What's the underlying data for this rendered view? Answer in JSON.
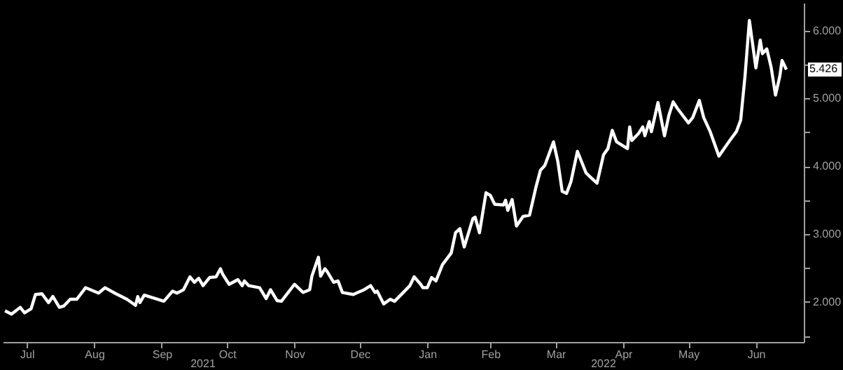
{
  "chart_data": {
    "type": "line",
    "x": [
      "2021-07-06",
      "2021-07-09",
      "2021-07-13",
      "2021-07-15",
      "2021-07-18",
      "2021-07-20",
      "2021-07-23",
      "2021-07-26",
      "2021-07-28",
      "2021-07-31",
      "2021-08-02",
      "2021-08-05",
      "2021-08-08",
      "2021-08-12",
      "2021-08-18",
      "2021-08-21",
      "2021-08-26",
      "2021-08-31",
      "2021-09-04",
      "2021-09-05",
      "2021-09-06",
      "2021-09-08",
      "2021-09-17",
      "2021-09-21",
      "2021-09-23",
      "2021-09-26",
      "2021-09-29",
      "2021-10-01",
      "2021-10-03",
      "2021-10-05",
      "2021-10-08",
      "2021-10-11",
      "2021-10-13",
      "2021-10-14",
      "2021-10-17",
      "2021-10-21",
      "2021-10-23",
      "2021-10-24",
      "2021-10-26",
      "2021-10-31",
      "2021-11-03",
      "2021-11-05",
      "2021-11-08",
      "2021-11-10",
      "2021-11-16",
      "2021-11-20",
      "2021-11-23",
      "2021-11-24",
      "2021-11-27",
      "2021-11-28",
      "2021-11-30",
      "2021-12-01",
      "2021-12-04",
      "2021-12-06",
      "2021-12-08",
      "2021-12-13",
      "2021-12-18",
      "2021-12-21",
      "2021-12-23",
      "2021-12-24",
      "2021-12-27",
      "2021-12-30",
      "2022-01-01",
      "2022-01-05",
      "2022-01-08",
      "2022-01-10",
      "2022-01-13",
      "2022-01-14",
      "2022-01-16",
      "2022-01-18",
      "2022-01-20",
      "2022-01-23",
      "2022-01-27",
      "2022-01-29",
      "2022-01-31",
      "2022-02-02",
      "2022-02-06",
      "2022-02-07",
      "2022-02-09",
      "2022-02-12",
      "2022-02-14",
      "2022-02-16",
      "2022-02-20",
      "2022-02-21",
      "2022-02-22",
      "2022-02-24",
      "2022-02-26",
      "2022-03-01",
      "2022-03-04",
      "2022-03-07",
      "2022-03-09",
      "2022-03-11",
      "2022-03-15",
      "2022-03-17",
      "2022-03-19",
      "2022-03-21",
      "2022-03-23",
      "2022-03-26",
      "2022-03-30",
      "2022-04-01",
      "2022-04-04",
      "2022-04-07",
      "2022-04-09",
      "2022-04-11",
      "2022-04-13",
      "2022-04-18",
      "2022-04-19",
      "2022-04-20",
      "2022-04-23",
      "2022-04-25",
      "2022-04-26",
      "2022-04-28",
      "2022-04-29",
      "2022-05-02",
      "2022-05-05",
      "2022-05-07",
      "2022-05-09",
      "2022-05-11",
      "2022-05-16",
      "2022-05-18",
      "2022-05-21",
      "2022-05-23",
      "2022-05-26",
      "2022-05-30",
      "2022-06-04",
      "2022-06-07",
      "2022-06-09",
      "2022-06-11",
      "2022-06-13",
      "2022-06-16",
      "2022-06-18",
      "2022-06-19",
      "2022-06-21",
      "2022-06-23",
      "2022-06-25",
      "2022-06-27",
      "2022-06-28",
      "2022-06-30"
    ],
    "series": [
      {
        "color": "#ffffff",
        "values": [
          1.87,
          1.82,
          1.92,
          1.84,
          1.9,
          2.11,
          2.12,
          1.99,
          2.08,
          1.92,
          1.94,
          2.04,
          2.04,
          2.21,
          2.13,
          2.21,
          2.12,
          2.04,
          1.95,
          2.08,
          1.99,
          2.1,
          2.01,
          2.16,
          2.13,
          2.18,
          2.37,
          2.29,
          2.35,
          2.24,
          2.36,
          2.37,
          2.49,
          2.41,
          2.26,
          2.33,
          2.24,
          2.31,
          2.24,
          2.21,
          2.05,
          2.18,
          2.02,
          2.01,
          2.26,
          2.14,
          2.18,
          2.38,
          2.66,
          2.38,
          2.49,
          2.45,
          2.29,
          2.31,
          2.14,
          2.11,
          2.18,
          2.24,
          2.14,
          2.16,
          1.97,
          2.04,
          2.01,
          2.14,
          2.24,
          2.37,
          2.26,
          2.21,
          2.21,
          2.36,
          2.31,
          2.55,
          2.72,
          3.02,
          3.08,
          2.81,
          3.23,
          3.25,
          3.02,
          3.61,
          3.57,
          3.44,
          3.43,
          3.5,
          3.35,
          3.51,
          3.12,
          3.26,
          3.28,
          3.7,
          3.94,
          4.01,
          4.36,
          4.07,
          3.63,
          3.6,
          3.77,
          4.22,
          3.9,
          3.84,
          3.75,
          4.17,
          4.26,
          4.53,
          4.36,
          4.26,
          4.58,
          4.38,
          4.48,
          4.58,
          4.45,
          4.66,
          4.51,
          4.94,
          4.45,
          4.75,
          4.95,
          4.85,
          4.64,
          4.72,
          4.97,
          4.72,
          4.51,
          4.15,
          4.38,
          4.51,
          4.68,
          5.33,
          6.15,
          5.45,
          5.86,
          5.66,
          5.73,
          5.46,
          5.05,
          5.33,
          5.56,
          5.426
        ]
      }
    ],
    "xlim": [
      "2021-07-05",
      "2022-07-08"
    ],
    "xticks": [
      {
        "value": "2021-07-16",
        "label": "Jul"
      },
      {
        "value": "2021-08-16",
        "label": "Aug"
      },
      {
        "value": "2021-09-16",
        "label": "Sep"
      },
      {
        "value": "2021-10-16",
        "label": "Oct"
      },
      {
        "value": "2021-11-16",
        "label": "Nov"
      },
      {
        "value": "2021-12-16",
        "label": "Dec"
      },
      {
        "value": "2022-01-16",
        "label": "Jan"
      },
      {
        "value": "2022-02-14",
        "label": "Feb"
      },
      {
        "value": "2022-03-16",
        "label": "Mar"
      },
      {
        "value": "2022-04-16",
        "label": "Apr"
      },
      {
        "value": "2022-05-16",
        "label": "May"
      },
      {
        "value": "2022-06-16",
        "label": "Jun"
      }
    ],
    "ylim": [
      1.41,
      6.41
    ],
    "yticks": [
      {
        "value": 1.5,
        "label": null
      },
      {
        "value": 2,
        "label": "2.000"
      },
      {
        "value": 2.5,
        "label": null
      },
      {
        "value": 3,
        "label": "3.000"
      },
      {
        "value": 3.5,
        "label": null
      },
      {
        "value": 4,
        "label": "4.000"
      },
      {
        "value": 4.5,
        "label": null
      },
      {
        "value": 5,
        "label": "5.000"
      },
      {
        "value": 5.5,
        "label": null
      },
      {
        "value": 6,
        "label": "6.000"
      }
    ],
    "annotations": [
      {
        "text": "5.426",
        "x": "2022-06-30",
        "y": 5.426
      },
      "2021",
      "2022"
    ],
    "grid": false,
    "marker": "none",
    "line_style": "solid"
  }
}
